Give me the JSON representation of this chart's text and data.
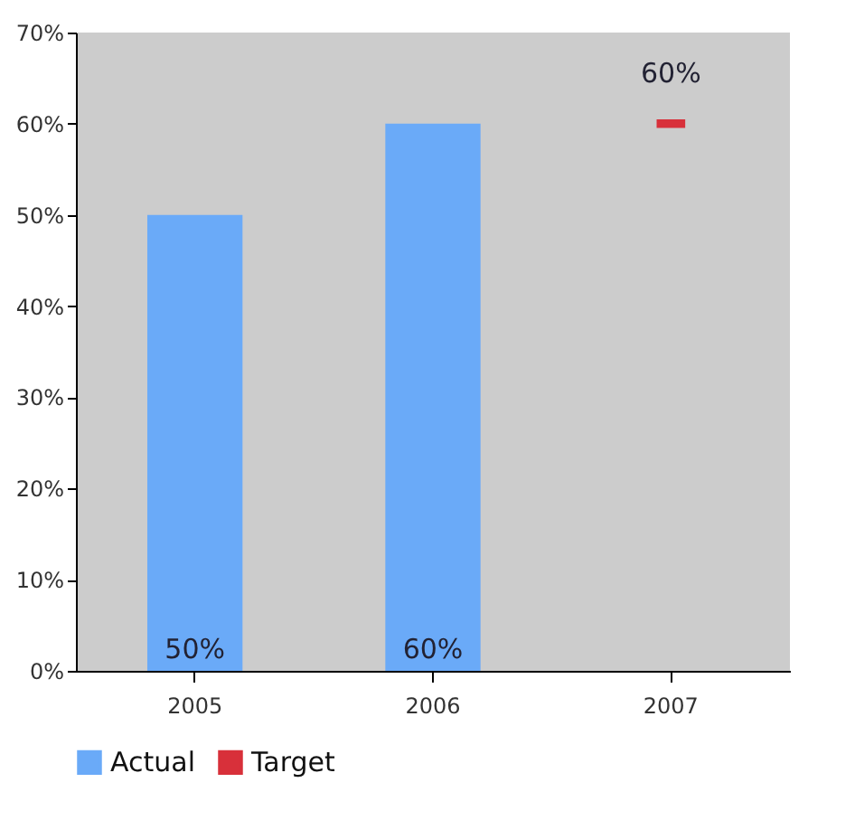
{
  "chart_data": {
    "type": "bar",
    "categories": [
      "2005",
      "2006",
      "2007"
    ],
    "series": [
      {
        "name": "Actual",
        "color": "#6aaaf8",
        "values": [
          50,
          60,
          null
        ],
        "value_labels": [
          "50%",
          "60%",
          null
        ]
      },
      {
        "name": "Target",
        "type": "line",
        "color": "#d8303a",
        "values": [
          null,
          null,
          60
        ],
        "value_labels": [
          null,
          null,
          "60%"
        ]
      }
    ],
    "ylim": [
      0,
      70
    ],
    "yticks": [
      {
        "value": 0,
        "label": "0%"
      },
      {
        "value": 10,
        "label": "10%"
      },
      {
        "value": 20,
        "label": "20%"
      },
      {
        "value": 30,
        "label": "30%"
      },
      {
        "value": 40,
        "label": "40%"
      },
      {
        "value": 50,
        "label": "50%"
      },
      {
        "value": 60,
        "label": "60%"
      },
      {
        "value": 70,
        "label": "70%"
      }
    ],
    "grid": false,
    "legend": "bottom",
    "marker": "square"
  }
}
